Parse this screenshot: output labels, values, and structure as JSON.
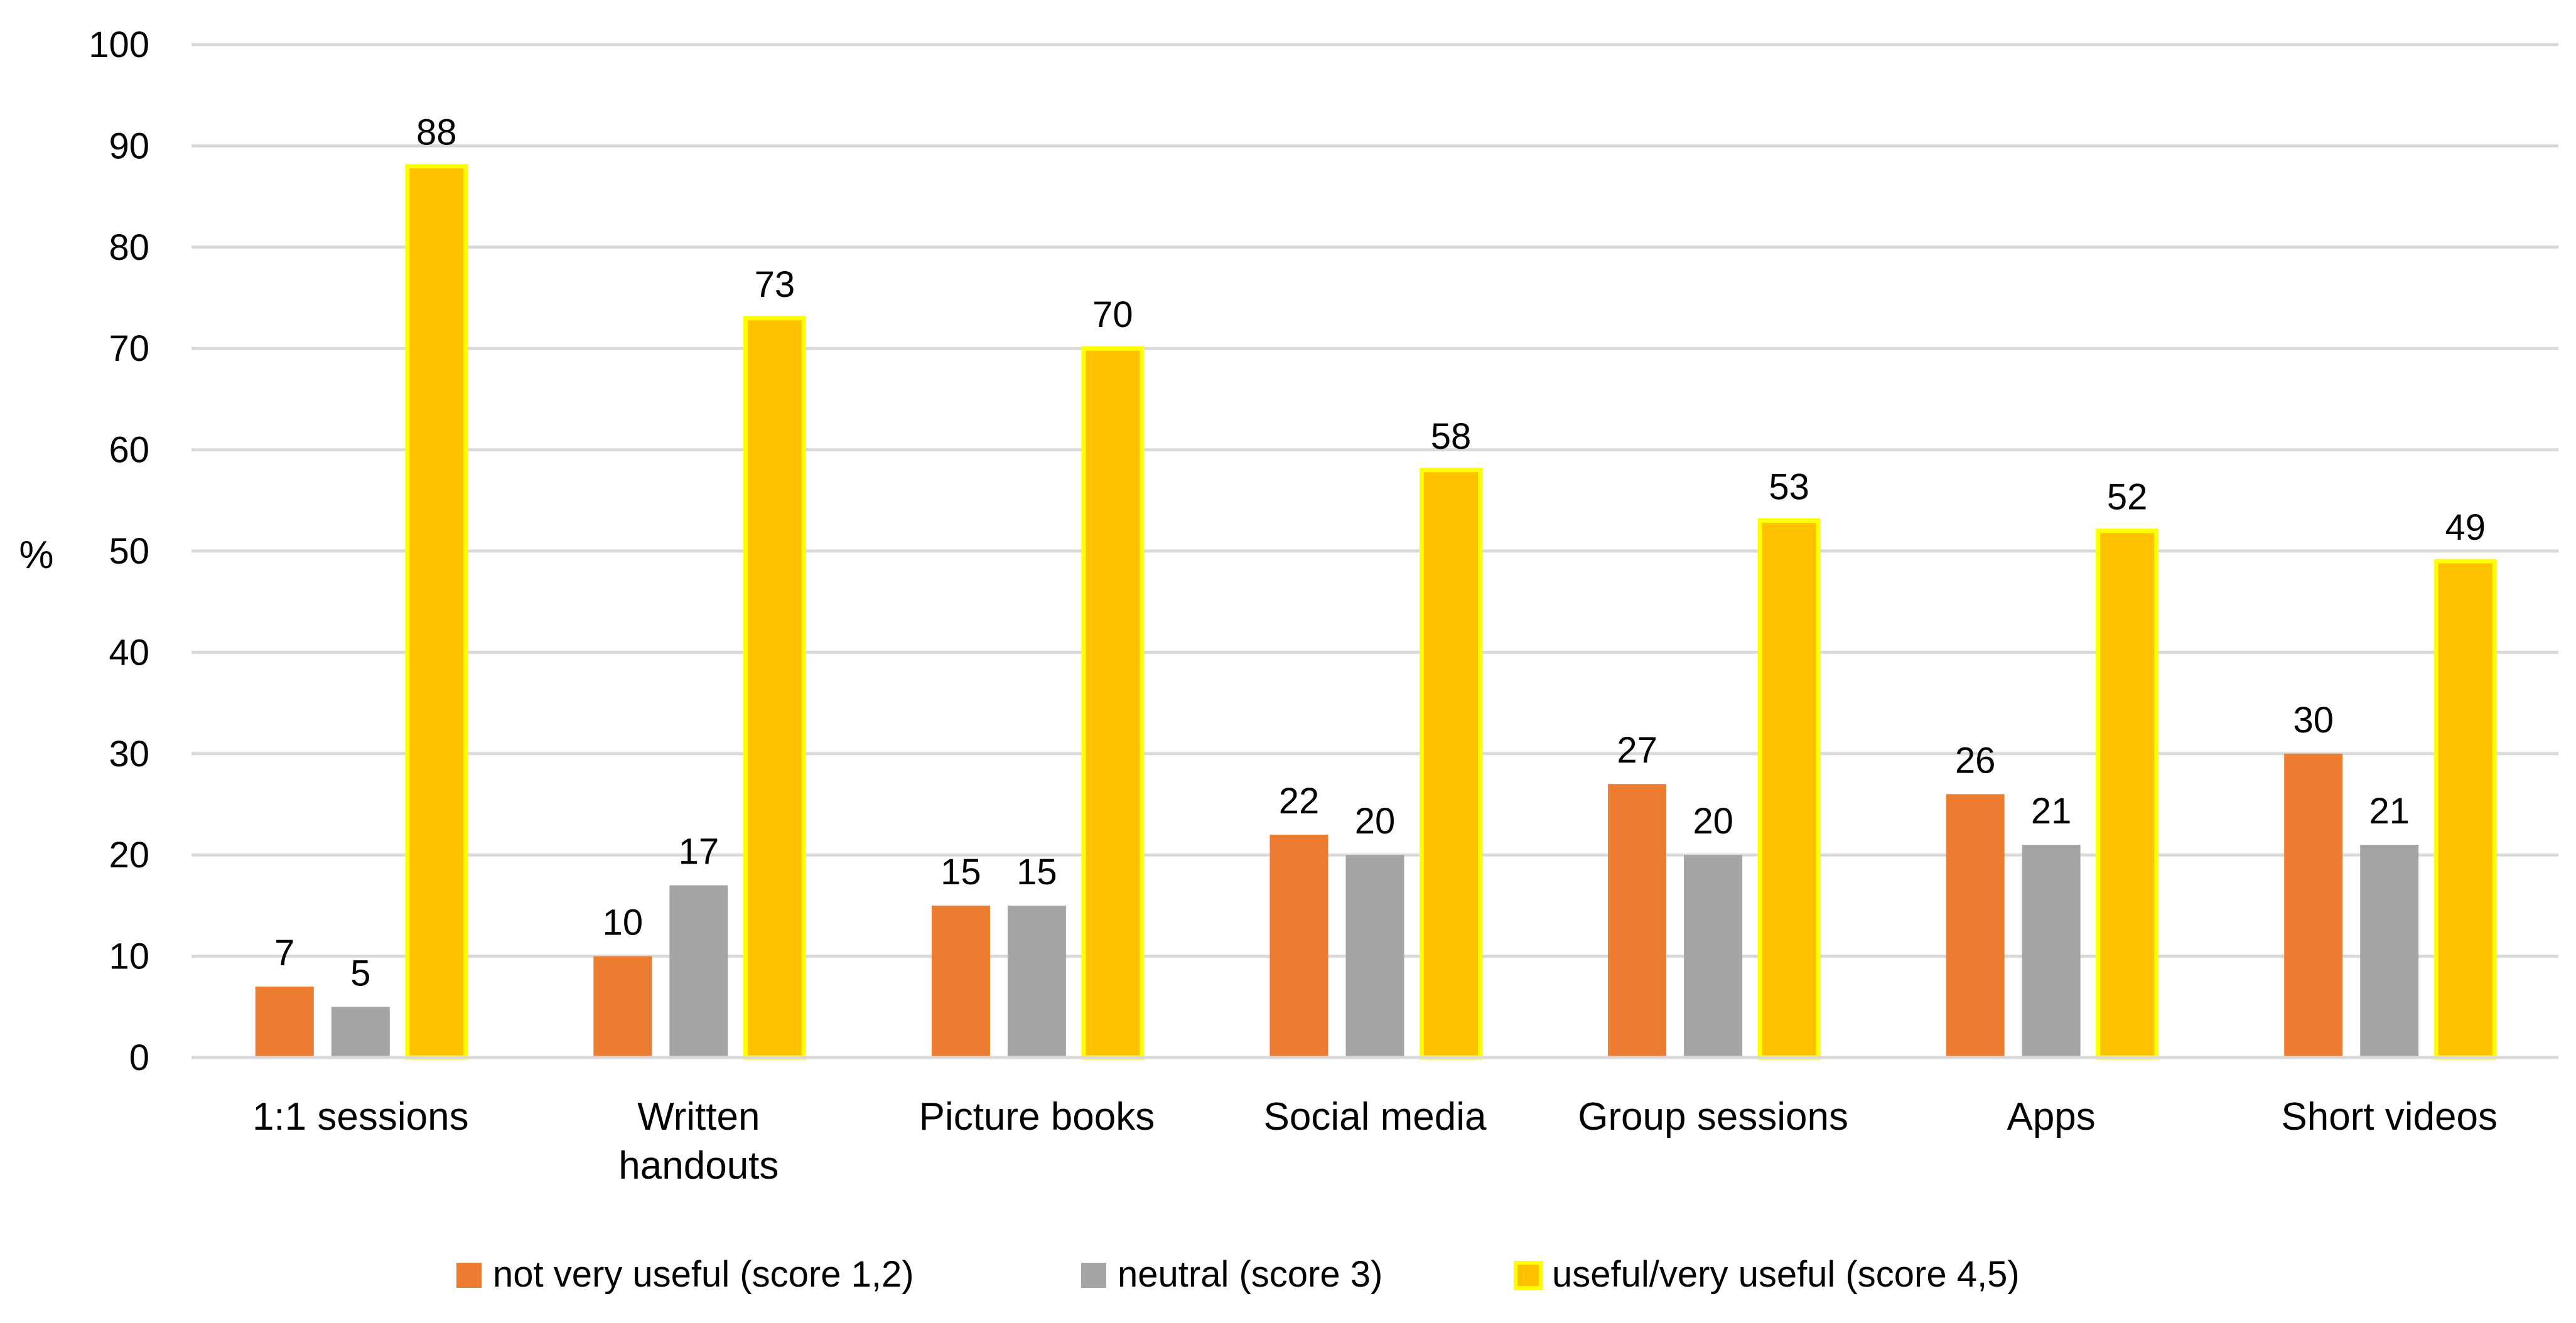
{
  "chart_data": {
    "type": "bar",
    "title": "",
    "xlabel": "",
    "ylabel": "%",
    "ylim": [
      0,
      100
    ],
    "yticks": [
      0,
      10,
      20,
      30,
      40,
      50,
      60,
      70,
      80,
      90,
      100
    ],
    "grid": true,
    "legend_position": "bottom",
    "categories": [
      [
        "1:1 sessions"
      ],
      [
        "Written",
        "handouts"
      ],
      [
        "Picture books"
      ],
      [
        "Social media"
      ],
      [
        "Group sessions"
      ],
      [
        "Apps"
      ],
      [
        "Short videos"
      ]
    ],
    "series": [
      {
        "name": "not very useful (score 1,2)",
        "color": "#ED7D31",
        "stroke": "none",
        "values": [
          7,
          10,
          15,
          22,
          27,
          26,
          30
        ]
      },
      {
        "name": "neutral (score 3)",
        "color": "#A5A5A5",
        "stroke": "none",
        "values": [
          5,
          17,
          15,
          20,
          20,
          21,
          21
        ]
      },
      {
        "name": "useful/very useful (score 4,5)",
        "color": "#FFC000",
        "stroke": "#FFFF00",
        "values": [
          88,
          73,
          70,
          58,
          53,
          52,
          49
        ]
      }
    ]
  }
}
